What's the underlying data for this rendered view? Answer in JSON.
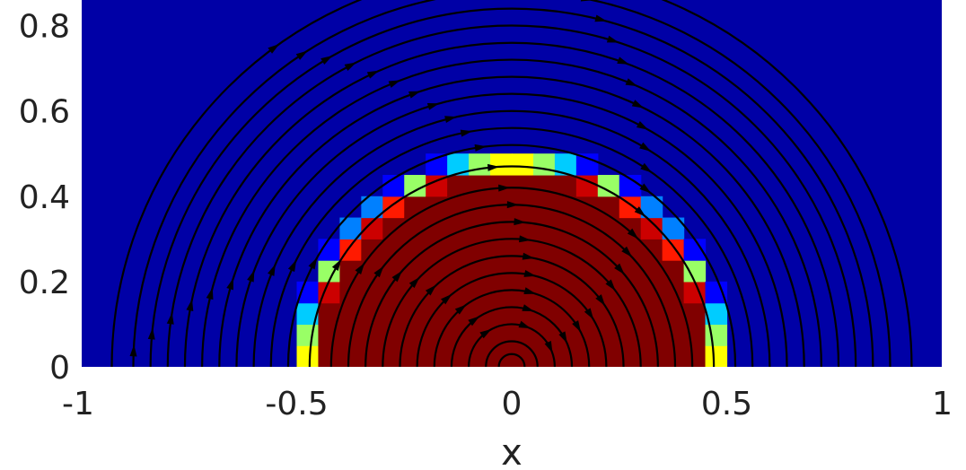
{
  "chart_data": {
    "type": "heatmap",
    "title": "",
    "xlabel": "x",
    "ylabel": "",
    "xlim": [
      -1,
      1
    ],
    "ylim": [
      0,
      0.86
    ],
    "xticks": [
      -1,
      -0.5,
      0,
      0.5,
      1
    ],
    "xtick_labels": [
      "-1",
      "-0.5",
      "0",
      "0.5",
      "1"
    ],
    "yticks": [
      0,
      0.2,
      0.4,
      0.6,
      0.8
    ],
    "ytick_labels": [
      "0",
      "0.2",
      "0.4",
      "0.6",
      "0.8"
    ],
    "colormap": "jet",
    "background_color": "#0000a6",
    "field": {
      "description_of_region": "volume-fraction field: 1 inside a half-disk centred at origin, 0 outside",
      "disk_center": [
        0,
        0
      ],
      "disk_radius": 0.48,
      "cell_size": 0.05,
      "inside_value": 1,
      "outside_value": 0
    },
    "streamlines": {
      "type": "concentric circles about origin",
      "center": [
        0,
        0
      ],
      "radii": [
        0.03,
        0.06,
        0.1,
        0.14,
        0.18,
        0.22,
        0.26,
        0.3,
        0.34,
        0.38,
        0.42,
        0.47,
        0.52,
        0.56,
        0.6,
        0.64,
        0.68,
        0.72,
        0.76,
        0.8,
        0.84,
        0.88,
        0.93
      ],
      "color": "#000000"
    }
  },
  "colors": {
    "inside": "#800000",
    "outside": "#00009f",
    "axis_text": "#222222"
  }
}
